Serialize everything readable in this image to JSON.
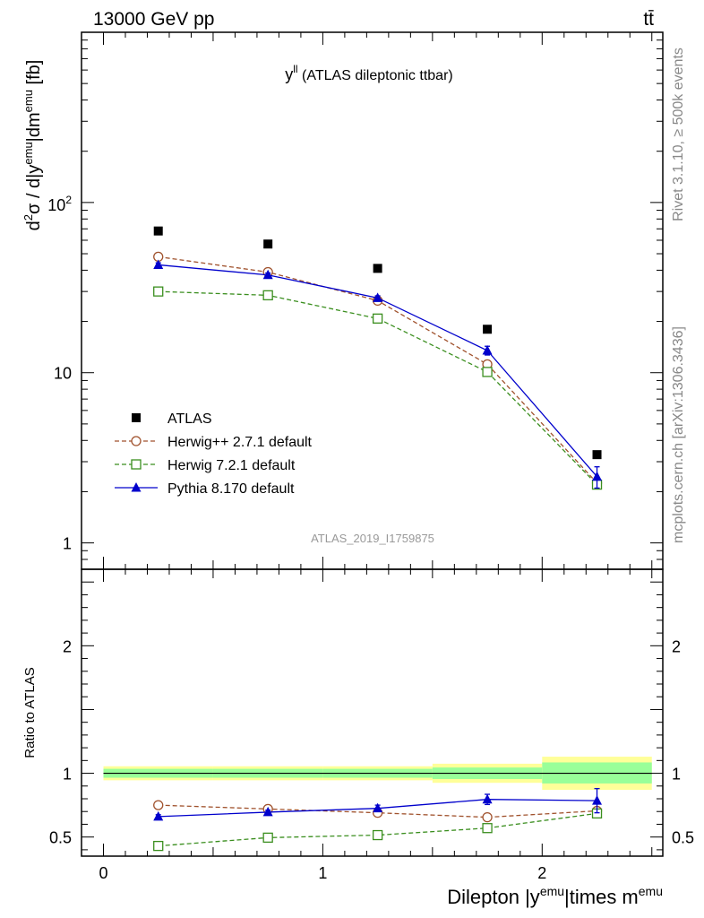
{
  "header": {
    "energy_label": "13000 GeV pp",
    "process_label": "tt̄",
    "side_version": "Rivet 3.1.10, ≥ 500k events",
    "side_site": "mcplots.cern.ch [arXiv:1306.3436]"
  },
  "chart_data": [
    {
      "type": "scatter",
      "panel": "main",
      "title": "y^ll (ATLAS dileptonic ttbar)",
      "title_main": "y",
      "title_sup": "ll",
      "title_rest": " (ATLAS dileptonic ttbar)",
      "ylabel": "d²σ / d|yemu|dmemu [fb]",
      "yscale": "log",
      "ylim": [
        0.7,
        1000
      ],
      "xlim": [
        -0.1,
        2.55
      ],
      "x_ticks": [
        0,
        1,
        2
      ],
      "y_tick_labels": [
        "1",
        "10",
        "10^2"
      ],
      "analysis_label": "ATLAS_2019_I1759875",
      "legend_position": "middle-left",
      "x": [
        0.25,
        0.75,
        1.25,
        1.75,
        2.25
      ],
      "series": [
        {
          "name": "ATLAS",
          "color": "#000000",
          "marker": "filled-square",
          "line": "none",
          "values": [
            68,
            57,
            41,
            18,
            3.3
          ]
        },
        {
          "name": "Herwig++ 2.7.1 default",
          "color": "#a0522d",
          "marker": "open-circle",
          "line": "dashed",
          "values": [
            48,
            39,
            26.5,
            11.2,
            2.25
          ]
        },
        {
          "name": "Herwig 7.2.1 default",
          "color": "#3a8e1e",
          "marker": "open-square",
          "line": "dashed",
          "values": [
            30,
            28.5,
            20.8,
            10.1,
            2.2
          ]
        },
        {
          "name": "Pythia 8.170 default",
          "color": "#0000cc",
          "marker": "filled-triangle",
          "line": "solid",
          "values": [
            43,
            37.5,
            27.5,
            13.5,
            2.45
          ],
          "errors": [
            1.2,
            1.0,
            0.8,
            0.8,
            0.35
          ]
        }
      ]
    },
    {
      "type": "scatter",
      "panel": "ratio",
      "ylabel": "Ratio to ATLAS",
      "xlabel": "Dilepton |yemu|times memu",
      "ylim": [
        0.35,
        2.6
      ],
      "y_ticks": [
        0.5,
        1,
        2
      ],
      "xlim": [
        -0.1,
        2.55
      ],
      "x_ticks": [
        0,
        1,
        2
      ],
      "x": [
        0.25,
        0.75,
        1.25,
        1.75,
        2.25
      ],
      "bands": [
        {
          "x_range": [
            0,
            0.5
          ],
          "inner": [
            0.965,
            1.035
          ],
          "outer": [
            0.945,
            1.055
          ]
        },
        {
          "x_range": [
            0.5,
            1.0
          ],
          "inner": [
            0.965,
            1.035
          ],
          "outer": [
            0.945,
            1.055
          ]
        },
        {
          "x_range": [
            1.0,
            1.5
          ],
          "inner": [
            0.965,
            1.035
          ],
          "outer": [
            0.945,
            1.055
          ]
        },
        {
          "x_range": [
            1.5,
            2.0
          ],
          "inner": [
            0.955,
            1.045
          ],
          "outer": [
            0.925,
            1.075
          ]
        },
        {
          "x_range": [
            2.0,
            2.5
          ],
          "inner": [
            0.92,
            1.085
          ],
          "outer": [
            0.87,
            1.13
          ]
        }
      ],
      "series": [
        {
          "name": "Herwig++ 2.7.1 default",
          "color": "#a0522d",
          "marker": "open-circle",
          "line": "dashed",
          "values": [
            0.75,
            0.72,
            0.69,
            0.655,
            0.705
          ]
        },
        {
          "name": "Herwig 7.2.1 default",
          "color": "#3a8e1e",
          "marker": "open-square",
          "line": "dashed",
          "values": [
            0.43,
            0.495,
            0.515,
            0.57,
            0.685
          ],
          "errors": [
            0,
            0,
            0,
            0,
            0.03
          ]
        },
        {
          "name": "Pythia 8.170 default",
          "color": "#0000cc",
          "marker": "filled-triangle",
          "line": "solid",
          "values": [
            0.66,
            0.695,
            0.725,
            0.795,
            0.785
          ],
          "errors": [
            0.015,
            0.015,
            0.025,
            0.04,
            0.095
          ]
        }
      ]
    }
  ]
}
